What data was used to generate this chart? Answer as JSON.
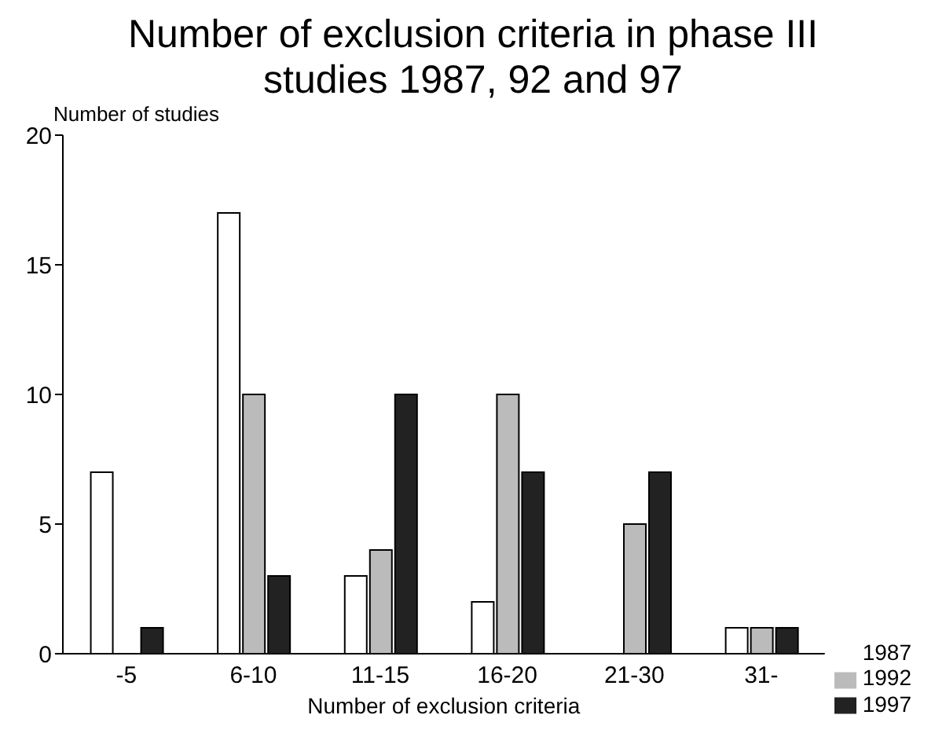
{
  "chart_data": {
    "type": "bar",
    "title": "Number of exclusion criteria in phase III studies 1987, 92 and 97",
    "xlabel": "Number of exclusion criteria",
    "ylabel": "Number of studies",
    "categories": [
      "-5",
      "6-10",
      "11-15",
      "16-20",
      "21-30",
      "31-"
    ],
    "series": [
      {
        "name": "1987",
        "color": "#ffffff",
        "values": [
          7,
          17,
          3,
          2,
          0,
          1
        ]
      },
      {
        "name": "1992",
        "color": "#bbbbbb",
        "values": [
          0,
          10,
          4,
          10,
          5,
          1
        ]
      },
      {
        "name": "1997",
        "color": "#222222",
        "values": [
          1,
          3,
          10,
          7,
          7,
          1
        ]
      }
    ],
    "ylim": [
      0,
      20
    ],
    "yticks": [
      0,
      5,
      10,
      15,
      20
    ],
    "grid": false,
    "legend": "bottom right"
  }
}
